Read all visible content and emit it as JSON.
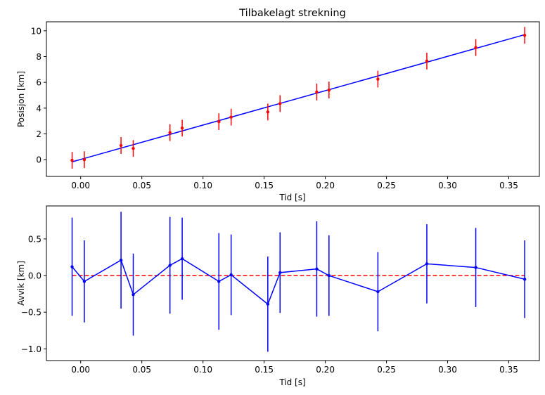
{
  "chart_data": [
    {
      "type": "scatter",
      "title": "Tilbakelagt strekning",
      "xlabel": "Tid [s]",
      "ylabel": "Posisjon [km]",
      "xlim": [
        -0.028,
        0.375
      ],
      "ylim": [
        -1.3,
        10.7
      ],
      "xticks": [
        "0.00",
        "0.05",
        "0.10",
        "0.15",
        "0.20",
        "0.25",
        "0.30",
        "0.35"
      ],
      "xtick_values": [
        0,
        0.05,
        0.1,
        0.15,
        0.2,
        0.25,
        0.3,
        0.35
      ],
      "yticks": [
        "0",
        "2",
        "4",
        "6",
        "8",
        "10"
      ],
      "ytick_values": [
        0,
        2,
        4,
        6,
        8,
        10
      ],
      "grid": false,
      "series": [
        {
          "kind": "errorbar",
          "color": "#ff0000",
          "x": [
            -0.007,
            0.003,
            0.033,
            0.043,
            0.073,
            0.083,
            0.113,
            0.123,
            0.153,
            0.163,
            0.193,
            0.203,
            0.243,
            0.283,
            0.323,
            0.363
          ],
          "y": [
            -0.05,
            0.0,
            1.1,
            0.87,
            2.1,
            2.45,
            2.95,
            3.3,
            3.7,
            4.35,
            5.25,
            5.4,
            6.25,
            7.65,
            8.7,
            9.65
          ],
          "yerr": 0.65
        },
        {
          "kind": "line",
          "color": "#0000ff",
          "x": [
            -0.007,
            0.363
          ],
          "y": [
            -0.17,
            9.7
          ]
        }
      ]
    },
    {
      "type": "line",
      "xlabel": "Tid [s]",
      "ylabel": "Avvik [km]",
      "xlim": [
        -0.028,
        0.375
      ],
      "ylim": [
        -1.16,
        0.95
      ],
      "xticks": [
        "0.00",
        "0.05",
        "0.10",
        "0.15",
        "0.20",
        "0.25",
        "0.30",
        "0.35"
      ],
      "xtick_values": [
        0,
        0.05,
        0.1,
        0.15,
        0.2,
        0.25,
        0.3,
        0.35
      ],
      "yticks": [
        "−1.0",
        "−0.5",
        "0.0",
        "0.5"
      ],
      "ytick_values": [
        -1.0,
        -0.5,
        0.0,
        0.5
      ],
      "grid": false,
      "series": [
        {
          "kind": "errorbar-line",
          "color": "#0000ff",
          "x": [
            -0.007,
            0.003,
            0.033,
            0.043,
            0.073,
            0.083,
            0.113,
            0.123,
            0.153,
            0.163,
            0.193,
            0.203,
            0.243,
            0.283,
            0.323,
            0.363
          ],
          "y": [
            0.12,
            -0.08,
            0.21,
            -0.26,
            0.14,
            0.23,
            -0.08,
            0.01,
            -0.39,
            0.04,
            0.09,
            0.0,
            -0.22,
            0.16,
            0.11,
            -0.05
          ],
          "yerr": [
            0.67,
            0.56,
            0.66,
            0.56,
            0.66,
            0.56,
            0.66,
            0.55,
            0.65,
            0.55,
            0.65,
            0.55,
            0.54,
            0.54,
            0.54,
            0.53
          ]
        },
        {
          "kind": "hline",
          "color": "#ff0000",
          "style": "dashed",
          "x": [
            -0.007,
            0.363
          ],
          "y": [
            0.0,
            0.0
          ]
        }
      ]
    }
  ]
}
